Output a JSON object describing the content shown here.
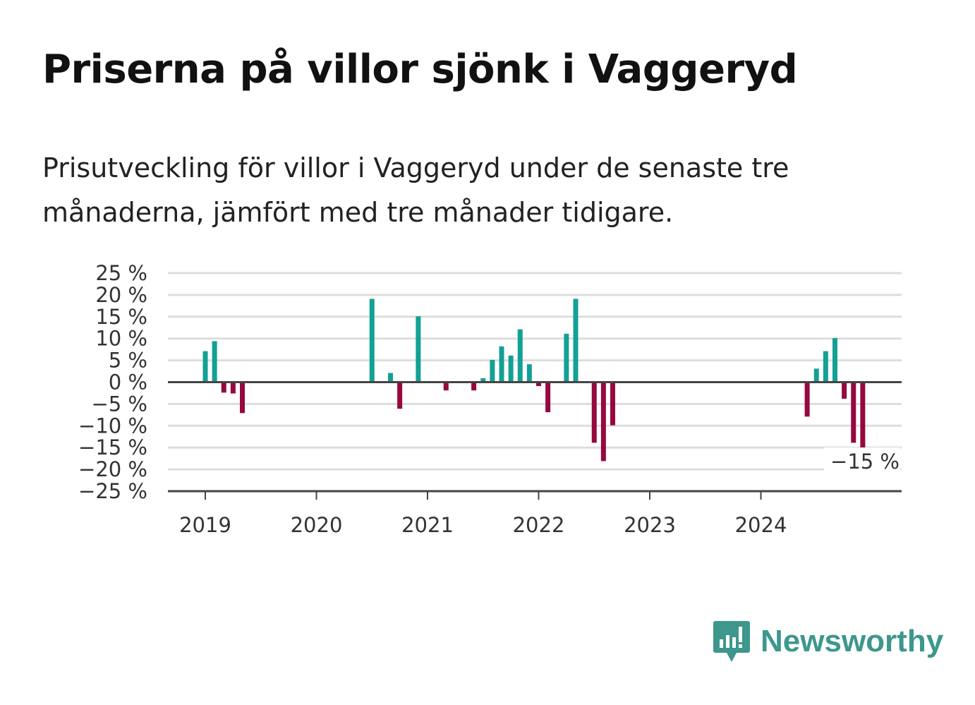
{
  "title": "Priserna på villor sjönk i Vaggeryd",
  "subtitle": "Prisutveckling för villor i Vaggeryd under de senaste tre månaderna, jämfört med tre månader tidigare.",
  "brand": {
    "name": "Newsworthy",
    "icon": "newsworthy-logo-icon"
  },
  "colors": {
    "positive": "#12a194",
    "negative": "#96083f",
    "grid": "#dddddd",
    "axis": "#444444",
    "brand": "#3d978c"
  },
  "chart_data": {
    "type": "bar",
    "ylim": [
      -25,
      25
    ],
    "ytick_labels": [
      "25 %",
      "20 %",
      "15 %",
      "10 %",
      "5 %",
      "0 %",
      "−5 %",
      "−10 %",
      "−15 %",
      "−20 %",
      "−25 %"
    ],
    "xtick_labels": [
      "2019",
      "2020",
      "2021",
      "2022",
      "2023",
      "2024"
    ],
    "x_year_start": 2019,
    "grid": true,
    "annotation": {
      "text": "−15 %",
      "x": "2024-12",
      "y": -15
    },
    "series": [
      {
        "x": [
          "2019-01",
          "2019-02",
          "2019-03",
          "2019-04",
          "2019-05",
          "2020-07",
          "2020-09",
          "2020-10",
          "2020-12",
          "2021-03",
          "2021-06",
          "2021-07",
          "2021-08",
          "2021-09",
          "2021-10",
          "2021-11",
          "2021-12",
          "2022-01",
          "2022-02",
          "2022-04",
          "2022-05",
          "2022-07",
          "2022-08",
          "2022-09",
          "2024-06",
          "2024-07",
          "2024-08",
          "2024-09",
          "2024-10",
          "2024-11",
          "2024-12"
        ],
        "values": [
          7.1,
          9.4,
          -2.4,
          -2.6,
          -7.1,
          19.1,
          2.1,
          -6.1,
          15.1,
          -1.9,
          -1.9,
          0.9,
          5.1,
          8.2,
          6.1,
          12.1,
          4.1,
          -0.9,
          -6.9,
          11.1,
          19.1,
          -13.9,
          -18.1,
          -9.9,
          -7.9,
          3.1,
          7.1,
          10.1,
          -3.8,
          -13.9,
          -15.0
        ]
      }
    ]
  }
}
